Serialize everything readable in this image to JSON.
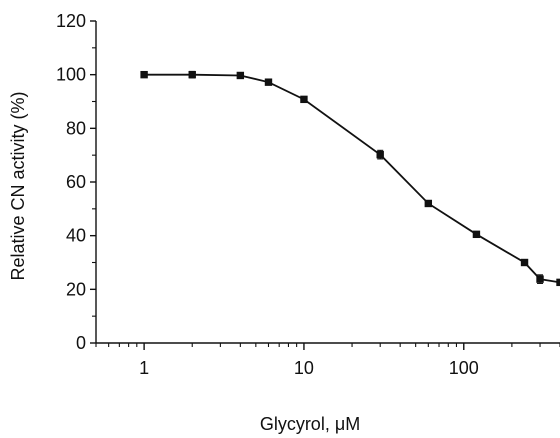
{
  "chart_data": {
    "type": "line",
    "title": "",
    "xlabel": "Glycyrol, μM",
    "ylabel": "Relative CN activity (%)",
    "x_scale": "log",
    "xlim": [
      0.5,
      400
    ],
    "ylim": [
      0,
      120
    ],
    "x_ticks": [
      1,
      10,
      100
    ],
    "x_tick_labels": [
      "1",
      "10",
      "100"
    ],
    "y_ticks": [
      0,
      20,
      40,
      60,
      80,
      100,
      120
    ],
    "y_tick_labels": [
      "0",
      "20",
      "40",
      "60",
      "80",
      "100",
      "120"
    ],
    "grid": false,
    "legend": "none",
    "series": [
      {
        "points": [
          {
            "x": 1,
            "y": 100,
            "error": 0.6
          },
          {
            "x": 2,
            "y": 100,
            "error": 1.2
          },
          {
            "x": 4,
            "y": 99.7,
            "error": 0.8
          },
          {
            "x": 6,
            "y": 97.2,
            "error": 0.8
          },
          {
            "x": 10,
            "y": 90.8,
            "error": 1.0
          },
          {
            "x": 30,
            "y": 70.2,
            "error": 1.6
          },
          {
            "x": 60,
            "y": 52,
            "error": 0.6
          },
          {
            "x": 120,
            "y": 40.5,
            "error": 1.0
          },
          {
            "x": 240,
            "y": 30,
            "error": 0.9
          },
          {
            "x": 300,
            "y": 23.8,
            "error": 1.6
          },
          {
            "x": 400,
            "y": 22.6,
            "error": 1.0
          }
        ]
      }
    ]
  }
}
